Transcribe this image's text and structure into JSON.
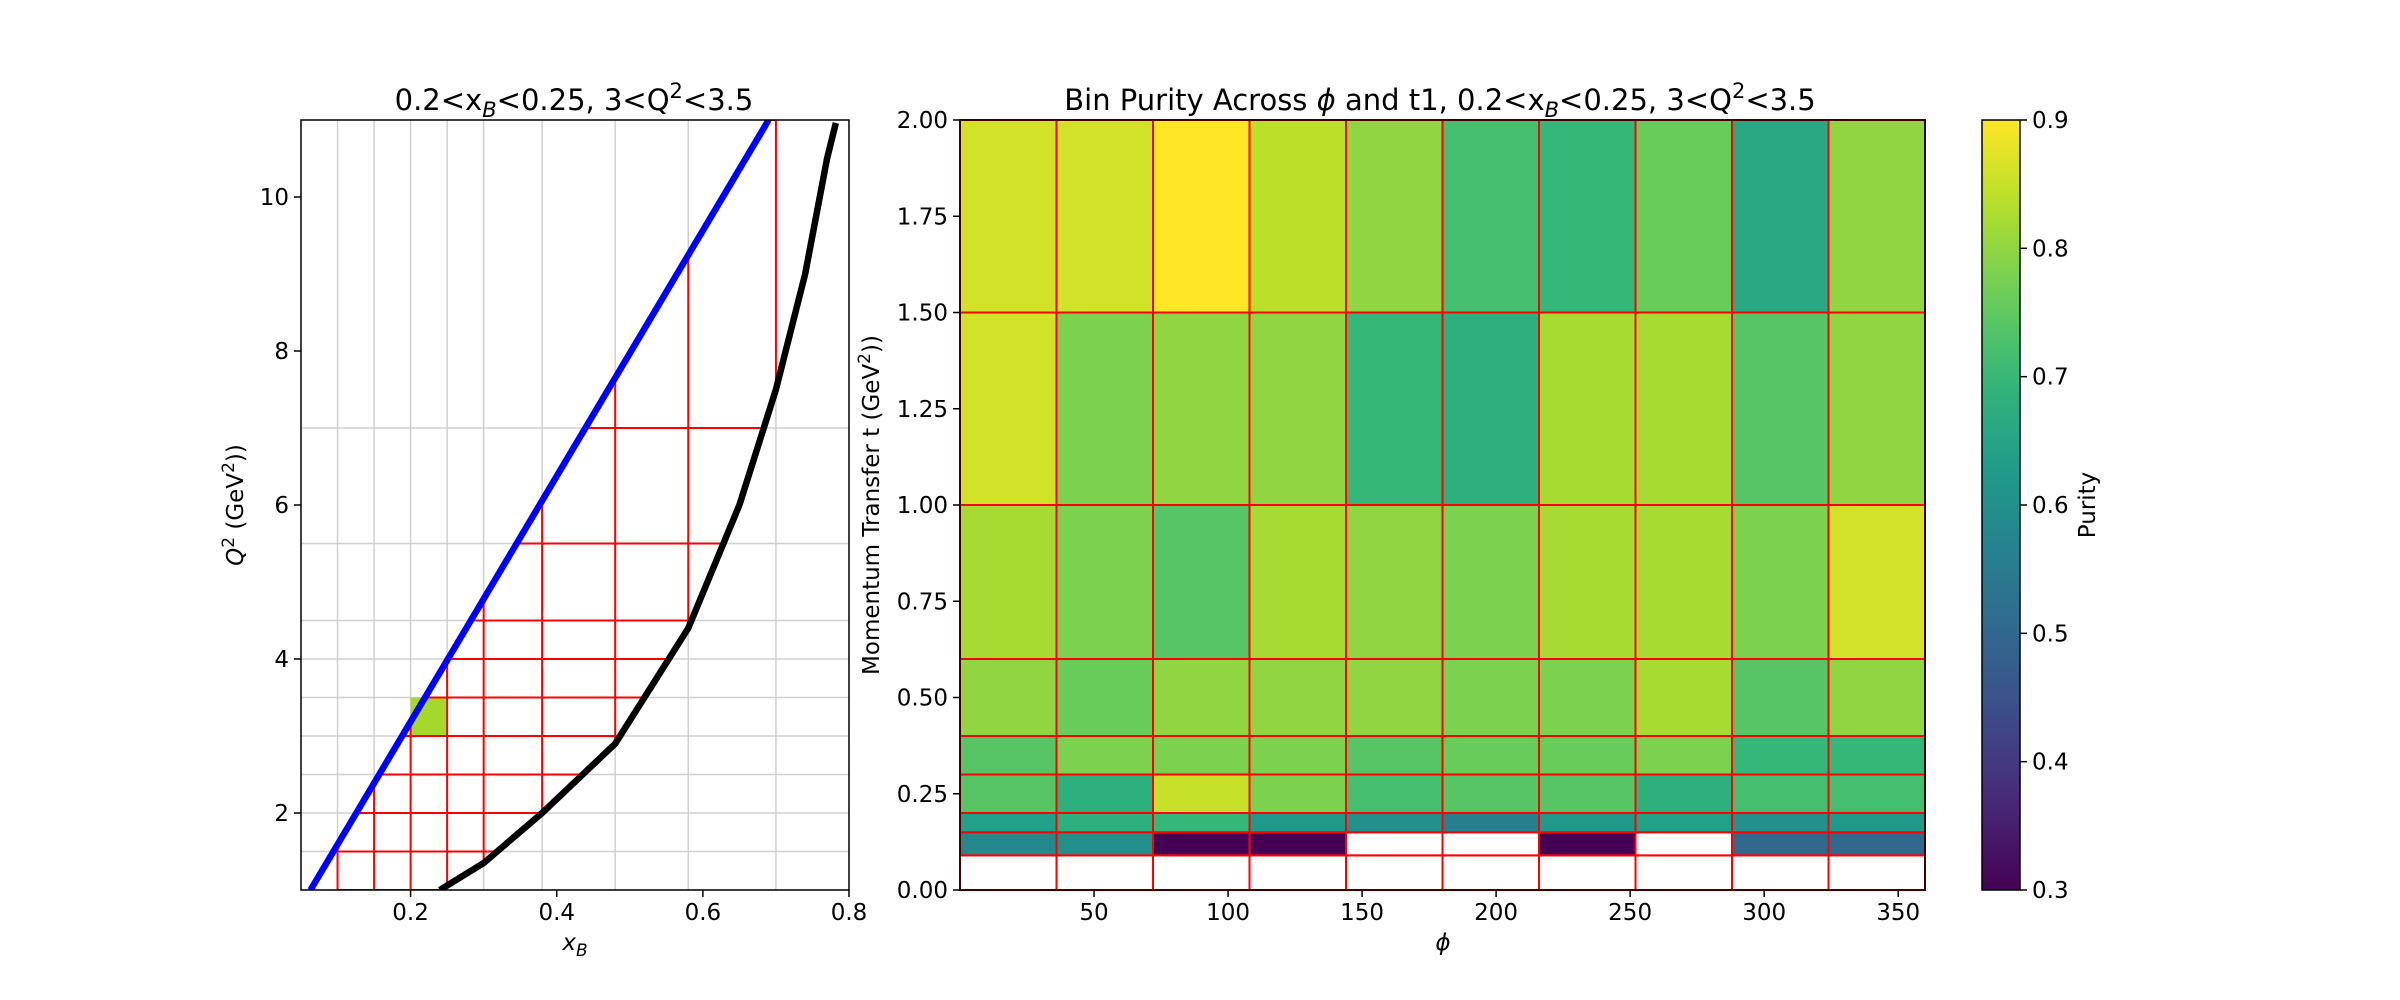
{
  "chart_data": [
    {
      "type": "line",
      "title_parts": [
        "0.2<x",
        "B",
        "<0.25, 3<Q",
        "2",
        "<3.5"
      ],
      "xlabel": [
        "x",
        "B"
      ],
      "ylabel": [
        "Q",
        "2",
        " (GeV",
        "2",
        "))"
      ],
      "xlim": [
        0.05,
        0.8
      ],
      "ylim": [
        1,
        11
      ],
      "xticks": [
        0.2,
        0.4,
        0.6,
        0.8
      ],
      "xtick_labels": [
        "0.2",
        "0.4",
        "0.6",
        "0.8"
      ],
      "yticks": [
        2,
        4,
        6,
        8,
        10
      ],
      "ytick_labels": [
        "2",
        "4",
        "6",
        "8",
        "10"
      ],
      "grid": true,
      "grid_x": [
        0.1,
        0.15,
        0.2,
        0.25,
        0.3,
        0.38,
        0.48,
        0.58,
        0.7
      ],
      "grid_y": [
        1.0,
        1.5,
        2.0,
        2.5,
        3.0,
        3.5,
        4.0,
        4.5,
        5.5,
        7.0
      ],
      "series": [
        {
          "color": "#0000ff",
          "x": [
            0.063,
            0.69
          ],
          "y": [
            1.0,
            11.0
          ]
        },
        {
          "color": "#000000",
          "x": [
            0.24,
            0.3,
            0.38,
            0.48,
            0.58,
            0.65,
            0.7,
            0.74,
            0.77,
            0.783
          ],
          "y": [
            1.0,
            1.35,
            2.0,
            2.9,
            4.4,
            6.0,
            7.5,
            9.0,
            10.5,
            11.0
          ]
        }
      ],
      "bin_edges_x": [
        0.1,
        0.15,
        0.2,
        0.25,
        0.3,
        0.38,
        0.48,
        0.58,
        0.7
      ],
      "bin_edges_y": [
        1.0,
        1.5,
        2.0,
        2.5,
        3.0,
        3.5,
        4.0,
        4.5,
        5.5,
        7.0,
        11.0
      ],
      "highlighted_bin": {
        "x": [
          0.2,
          0.25
        ],
        "y": [
          3.0,
          3.5
        ],
        "color": "#a6d82b"
      },
      "bin_line_color": "#ff0000"
    },
    {
      "type": "heatmap",
      "title_parts": [
        "Bin Purity Across ",
        "ϕ",
        " and t1, 0.2<x",
        "B",
        "<0.25, 3<Q",
        "2",
        "<3.5"
      ],
      "xlabel": "ϕ",
      "ylabel": [
        "Momentum Transfer t (GeV",
        "2",
        "))"
      ],
      "xlim": [
        0,
        360
      ],
      "ylim": [
        0,
        2.0
      ],
      "xticks": [
        50,
        100,
        150,
        200,
        250,
        300,
        350
      ],
      "xtick_labels": [
        "50",
        "100",
        "150",
        "200",
        "250",
        "300",
        "350"
      ],
      "yticks": [
        0.0,
        0.25,
        0.5,
        0.75,
        1.0,
        1.25,
        1.5,
        1.75,
        2.0
      ],
      "ytick_labels": [
        "0.00",
        "0.25",
        "0.50",
        "0.75",
        "1.00",
        "1.25",
        "1.50",
        "1.75",
        "2.00"
      ],
      "x_edges": [
        0,
        36,
        72,
        108,
        144,
        180,
        216,
        252,
        288,
        324,
        360
      ],
      "y_edges": [
        0,
        0.09,
        0.15,
        0.2,
        0.3,
        0.4,
        0.6,
        1.0,
        1.5,
        2.0
      ],
      "values": [
        [
          null,
          null,
          null,
          null,
          null,
          null,
          null,
          null,
          null,
          null
        ],
        [
          0.58,
          0.6,
          0.3,
          0.3,
          null,
          null,
          0.3,
          null,
          0.5,
          0.5
        ],
        [
          0.64,
          0.68,
          0.7,
          0.62,
          0.6,
          0.56,
          0.62,
          0.64,
          0.6,
          0.62
        ],
        [
          0.74,
          0.68,
          0.85,
          0.78,
          0.72,
          0.74,
          0.74,
          0.68,
          0.72,
          0.72
        ],
        [
          0.74,
          0.78,
          0.78,
          0.78,
          0.74,
          0.76,
          0.76,
          0.78,
          0.7,
          0.7
        ],
        [
          0.8,
          0.76,
          0.8,
          0.8,
          0.8,
          0.78,
          0.78,
          0.82,
          0.74,
          0.8
        ],
        [
          0.82,
          0.78,
          0.74,
          0.82,
          0.8,
          0.78,
          0.82,
          0.82,
          0.78,
          0.86
        ],
        [
          0.86,
          0.78,
          0.8,
          0.8,
          0.7,
          0.68,
          0.82,
          0.82,
          0.74,
          0.8
        ],
        [
          0.86,
          0.86,
          0.9,
          0.84,
          0.8,
          0.72,
          0.7,
          0.76,
          0.66,
          0.8
        ]
      ],
      "cell_border_color": "#ff0000",
      "colorbar": {
        "label": "Purity",
        "min": 0.3,
        "max": 0.9,
        "ticks": [
          0.3,
          0.4,
          0.5,
          0.6,
          0.7,
          0.8,
          0.9
        ],
        "tick_labels": [
          "0.3",
          "0.4",
          "0.5",
          "0.6",
          "0.7",
          "0.8",
          "0.9"
        ],
        "colormap": "viridis"
      }
    }
  ]
}
